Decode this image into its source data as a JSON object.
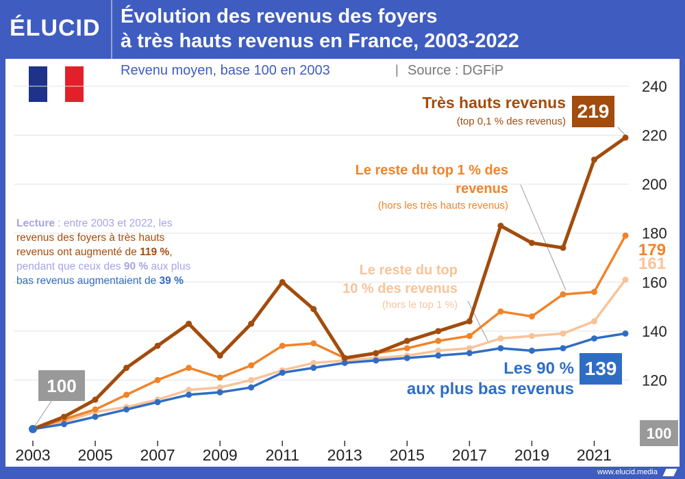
{
  "header": {
    "logo": "ÉLUCID",
    "title_line1": "Évolution des revenus des foyers",
    "title_line2": "à très hauts revenus en France, 2003-2022"
  },
  "subtitle": {
    "main": "Revenu moyen, base 100 en 2003",
    "separator": "|",
    "source": "Source : DGFiP"
  },
  "footer": {
    "url": "www.elucid.media"
  },
  "flag_colors": [
    "#1e3387",
    "#ffffff",
    "#e3202a"
  ],
  "chart_data": {
    "type": "line",
    "title": "Évolution des revenus des foyers à très hauts revenus en France, 2003-2022",
    "subtitle": "Revenu moyen, base 100 en 2003",
    "x": [
      2003,
      2004,
      2005,
      2006,
      2007,
      2008,
      2009,
      2010,
      2011,
      2012,
      2013,
      2014,
      2015,
      2016,
      2017,
      2018,
      2019,
      2020,
      2021,
      2022
    ],
    "x_ticks": [
      2003,
      2005,
      2007,
      2009,
      2011,
      2013,
      2015,
      2017,
      2019,
      2021
    ],
    "y_ticks": [
      120,
      140,
      160,
      180,
      200,
      220,
      240
    ],
    "ylim": [
      100,
      240
    ],
    "grid": true,
    "y_axis_side": "right",
    "series": [
      {
        "id": "top01",
        "name": "Très hauts revenus",
        "sub": "(top 0,1 % des revenus)",
        "color": "#a24c0d",
        "values": [
          100,
          105,
          112,
          125,
          134,
          143,
          130,
          143,
          160,
          149,
          129,
          131,
          136,
          140,
          144,
          183,
          176,
          174,
          210,
          219
        ],
        "end_label": "219"
      },
      {
        "id": "top1",
        "name": "Le reste du top 1 % des revenus",
        "name_line1": "Le reste du top 1 % des",
        "name_line2": "revenus",
        "sub": "(hors les très hauts revenus)",
        "color": "#f0832a",
        "values": [
          100,
          104,
          108,
          114,
          120,
          125,
          121,
          126,
          134,
          135,
          129,
          131,
          133,
          136,
          138,
          148,
          146,
          155,
          156,
          179
        ],
        "end_label": "179"
      },
      {
        "id": "top10",
        "name": "Le reste du top 10 % des revenus",
        "name_line1": "Le reste du top",
        "name_line2": "10 % des revenus",
        "sub": "(hors le top 1 %)",
        "color": "#f8c399",
        "values": [
          100,
          103,
          107,
          109,
          112,
          116,
          117,
          120,
          124,
          127,
          128,
          129,
          130,
          132,
          133,
          137,
          138,
          139,
          144,
          161
        ],
        "end_label": "161"
      },
      {
        "id": "bottom90",
        "name": "Les 90 % aux plus bas revenus",
        "name_line1": "Les 90 %",
        "name_line2": "aux plus bas revenus",
        "color": "#2f6dc5",
        "values": [
          100,
          102,
          105,
          108,
          111,
          114,
          115,
          117,
          123,
          125,
          127,
          128,
          129,
          130,
          131,
          133,
          132,
          133,
          137,
          139
        ],
        "end_label": "139"
      }
    ],
    "base_label": "100",
    "base_label_right": "100",
    "annotation": {
      "lecture_label": "Lecture",
      "lecture_rest": " : entre 2003 et 2022, les",
      "line2": "revenus des foyers à très hauts",
      "line3_pre": "revenus ont augmenté de ",
      "line3_bold": "119 %",
      "line3_post": ",",
      "line4_pre": "pendant que ceux des ",
      "line4_bold": "90 %",
      "line4_post": " aux plus",
      "line5_pre": "bas revenus augmentaient de ",
      "line5_bold": "39 %"
    }
  }
}
